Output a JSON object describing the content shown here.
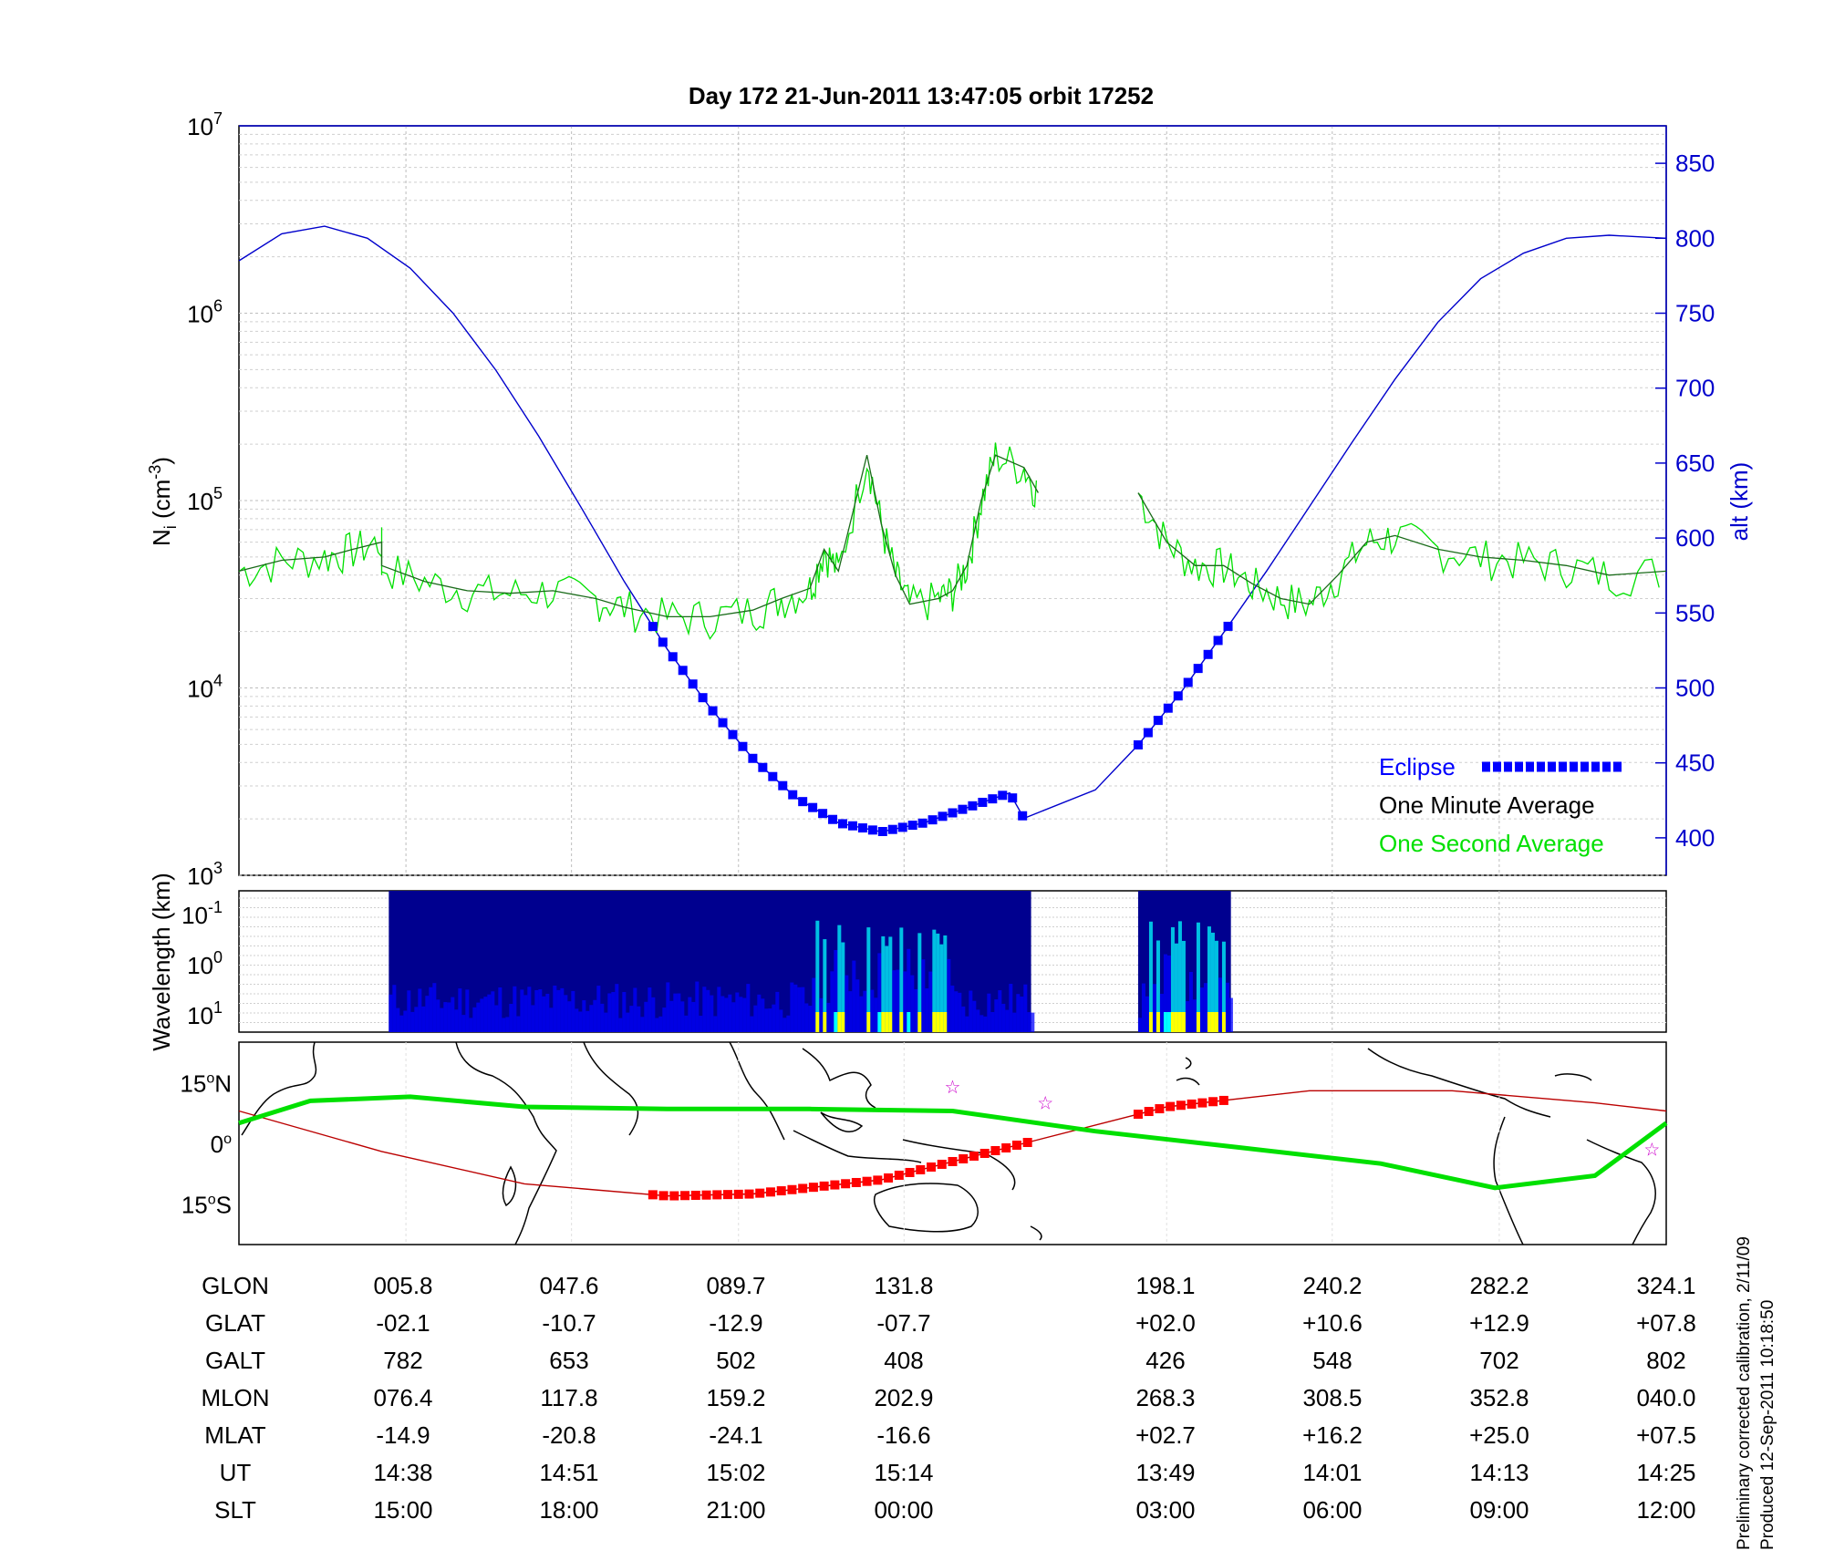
{
  "title": "Day 172  21-Jun-2011 13:47:05   orbit 17252",
  "chart_data": [
    {
      "type": "line",
      "panel": "ion-density",
      "ylabel_left": "N",
      "ylabel_left_sub": "i",
      "ylabel_left_unit_pre": " (cm",
      "ylabel_left_unit_exp": "-3",
      "ylabel_left_unit_post": ")",
      "ylabel_right": "alt (km)",
      "y_scale": "log",
      "ylim_left": [
        1000,
        10000000
      ],
      "yticks_left": [
        {
          "base": "10",
          "exp": "3",
          "value": 1000
        },
        {
          "base": "10",
          "exp": "4",
          "value": 10000
        },
        {
          "base": "10",
          "exp": "5",
          "value": 100000
        },
        {
          "base": "10",
          "exp": "6",
          "value": 1000000
        },
        {
          "base": "10",
          "exp": "7",
          "value": 10000000
        }
      ],
      "ylim_right": [
        375,
        875
      ],
      "yticks_right": [
        "400",
        "450",
        "500",
        "550",
        "600",
        "650",
        "700",
        "750",
        "800",
        "850"
      ],
      "grid": true,
      "legend_position": "bottom-right",
      "legend": [
        "Eclipse",
        "One Minute Average",
        "One Second Average"
      ],
      "colors": {
        "altitude": "#0000cc",
        "eclipse": "#0000ff",
        "minute": "#1a6b1a",
        "second": "#00e000"
      },
      "altitude_series": {
        "name": "alt (km)",
        "x": [
          0,
          0.03,
          0.06,
          0.09,
          0.12,
          0.15,
          0.18,
          0.21,
          0.24,
          0.27,
          0.3,
          0.33,
          0.36,
          0.39,
          0.42,
          0.45,
          0.48,
          0.51,
          0.54,
          0.55,
          0.6,
          0.63,
          0.66,
          0.69,
          0.72,
          0.75,
          0.78,
          0.81,
          0.84,
          0.87,
          0.9,
          0.93,
          0.96,
          1.0
        ],
        "y": [
          785,
          803,
          808,
          800,
          780,
          750,
          712,
          668,
          620,
          571,
          526,
          487,
          453,
          427,
          410,
          404,
          410,
          420,
          430,
          413,
          432,
          462,
          497,
          537,
          578,
          621,
          664,
          706,
          744,
          773,
          790,
          800,
          802,
          800
        ]
      },
      "eclipse_segments": [
        [
          0.29,
          0.555
        ],
        [
          0.63,
          0.695
        ]
      ],
      "minute_average": {
        "x": [
          0,
          0.03,
          0.06,
          0.08,
          0.1,
          0.1,
          0.13,
          0.16,
          0.19,
          0.22,
          0.25,
          0.27,
          0.3,
          0.33,
          0.36,
          0.38,
          0.4,
          0.41,
          0.42,
          0.44,
          0.45,
          0.46,
          0.47,
          0.49,
          0.5,
          0.51,
          0.52,
          0.53,
          0.55,
          0.56
        ],
        "y": [
          42000,
          48000,
          50000,
          55000,
          60000,
          45000,
          37000,
          33000,
          32000,
          33000,
          30000,
          27000,
          24000,
          24000,
          26000,
          30000,
          34000,
          55000,
          42000,
          175000,
          75000,
          40000,
          28000,
          30000,
          33000,
          45000,
          100000,
          175000,
          150000,
          110000
        ]
      },
      "minute_average_2": {
        "x": [
          0.63,
          0.65,
          0.67,
          0.69,
          0.71,
          0.73,
          0.75,
          0.77,
          0.79,
          0.81,
          0.84,
          0.87,
          0.9,
          0.93,
          0.96,
          1.0
        ],
        "y": [
          110000,
          60000,
          45000,
          45000,
          36000,
          30000,
          28000,
          40000,
          60000,
          65000,
          55000,
          50000,
          48000,
          45000,
          40000,
          42000
        ]
      }
    },
    {
      "type": "heatmap",
      "panel": "spectrogram",
      "ylabel": "Wavelength (km)",
      "yticks": [
        {
          "base": "10",
          "exp": "-1"
        },
        {
          "base": "10",
          "exp": "0"
        },
        {
          "base": "10",
          "exp": "1"
        }
      ],
      "segments": [
        [
          0.105,
          0.555
        ],
        [
          0.63,
          0.695
        ]
      ],
      "colormap": [
        "#00008f",
        "#0000ff",
        "#00ffff",
        "#ffff00",
        "#ff0000"
      ]
    },
    {
      "type": "line",
      "panel": "ground-track-map",
      "yticks": [
        {
          "deg": "15",
          "hemi": "N",
          "value": 15
        },
        {
          "deg": "0",
          "hemi": "",
          "value": 0
        },
        {
          "deg": "15",
          "hemi": "S",
          "value": -15
        }
      ],
      "ylim": [
        -25,
        25
      ],
      "colors": {
        "track": "#00e000",
        "terminator": "#bb0000",
        "eclipse": "#ff0000",
        "star": "#cc00cc",
        "coast": "#000000"
      },
      "magnetic_equator": {
        "x": [
          0,
          0.05,
          0.12,
          0.2,
          0.3,
          0.4,
          0.5,
          0.6,
          0.7,
          0.8,
          0.88,
          0.95,
          1.0
        ],
        "y": [
          5,
          10.5,
          11.5,
          9,
          8.5,
          8.5,
          8,
          3,
          -1,
          -5,
          -11,
          -8,
          5
        ]
      },
      "sun_path": {
        "x": [
          0,
          0.1,
          0.2,
          0.3,
          0.36,
          0.45,
          0.55,
          0.65,
          0.75,
          0.85,
          0.95,
          1.0
        ],
        "y": [
          8,
          -2,
          -10,
          -13,
          -12.5,
          -9,
          0,
          9,
          13,
          13,
          10,
          8
        ]
      },
      "eclipse_segments": [
        [
          0.29,
          0.555
        ],
        [
          0.63,
          0.695
        ]
      ],
      "star_markers": [
        {
          "x": 0.5,
          "y": 14
        },
        {
          "x": 0.565,
          "y": 10
        },
        {
          "x": 0.99,
          "y": -1.5
        }
      ]
    }
  ],
  "table": {
    "labels": [
      "GLON",
      "GLAT",
      "GALT",
      "MLON",
      "MLAT",
      "UT",
      "SLT"
    ],
    "columns": [
      [
        "005.8",
        "-02.1",
        "782",
        "076.4",
        "-14.9",
        "14:38",
        "15:00"
      ],
      [
        "047.6",
        "-10.7",
        "653",
        "117.8",
        "-20.8",
        "14:51",
        "18:00"
      ],
      [
        "089.7",
        "-12.9",
        "502",
        "159.2",
        "-24.1",
        "15:02",
        "21:00"
      ],
      [
        "131.8",
        "-07.7",
        "408",
        "202.9",
        "-16.6",
        "15:14",
        "00:00"
      ],
      [
        "198.1",
        "+02.0",
        "426",
        "268.3",
        "+02.7",
        "13:49",
        "03:00"
      ],
      [
        "240.2",
        "+10.6",
        "548",
        "308.5",
        "+16.2",
        "14:01",
        "06:00"
      ],
      [
        "282.2",
        "+12.9",
        "702",
        "352.8",
        "+25.0",
        "14:13",
        "09:00"
      ],
      [
        "324.1",
        "+07.8",
        "802",
        "040.0",
        "+07.5",
        "14:25",
        "12:00"
      ]
    ]
  },
  "footnote": [
    "Preliminary corrected calibration, 2/11/09",
    "Produced 12-Sep-2011 10:18:50"
  ]
}
